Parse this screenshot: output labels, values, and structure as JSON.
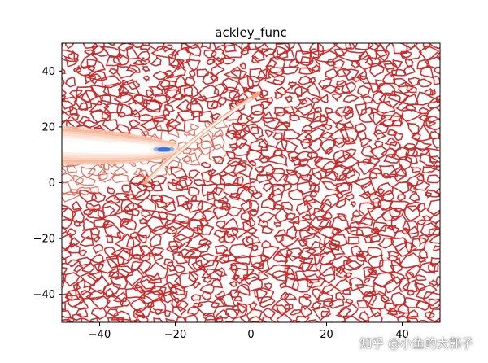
{
  "chart_data": {
    "type": "contour",
    "title": "ackley_func",
    "xlabel": "",
    "ylabel": "",
    "xlim": [
      -50,
      50
    ],
    "ylim": [
      -50,
      50
    ],
    "xticks": [
      -40,
      -20,
      0,
      20,
      40
    ],
    "yticks": [
      -40,
      -20,
      0,
      20,
      40
    ],
    "colormap": "coolwarm",
    "grid": false,
    "colors": {
      "high": "#c62828",
      "mid": "#f4a582",
      "low": "#3b6fd6"
    },
    "low_region": {
      "center_x": -22,
      "center_y": 12
    }
  },
  "watermark": "知乎 @小鱼的大郭子"
}
